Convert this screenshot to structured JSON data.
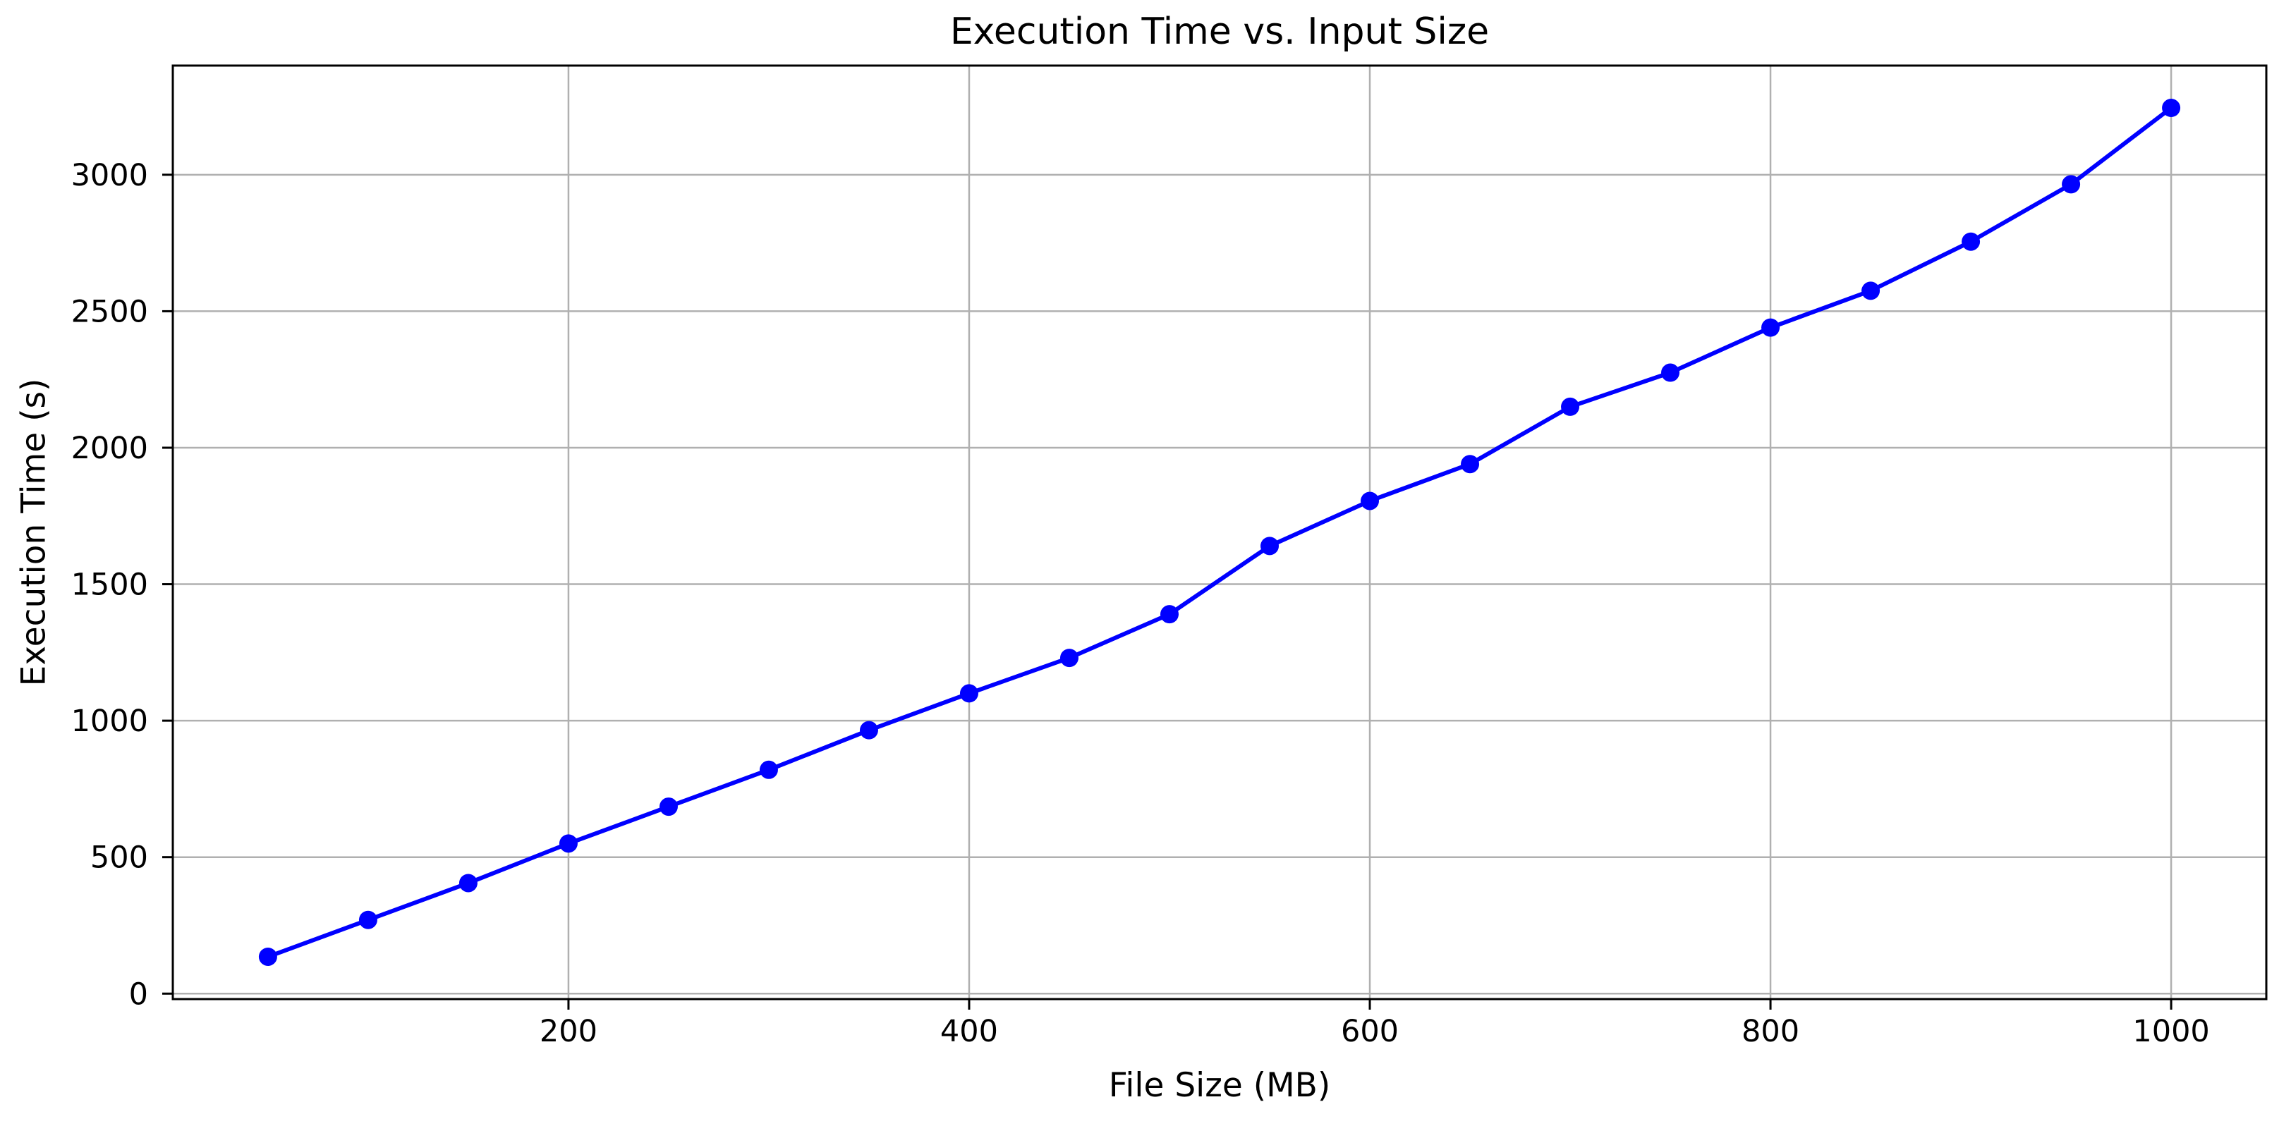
{
  "chart_data": {
    "type": "line",
    "title": "Execution Time vs. Input Size",
    "xlabel": "File Size (MB)",
    "ylabel": "Execution Time (s)",
    "x": [
      50,
      100,
      150,
      200,
      250,
      300,
      350,
      400,
      450,
      500,
      550,
      600,
      650,
      700,
      750,
      800,
      850,
      900,
      950,
      1000
    ],
    "y": [
      135,
      270,
      405,
      550,
      685,
      820,
      965,
      1100,
      1230,
      1390,
      1640,
      1805,
      1940,
      2150,
      2275,
      2440,
      2575,
      2755,
      2965,
      3245
    ],
    "xticks": [
      200,
      400,
      600,
      800,
      1000
    ],
    "yticks": [
      0,
      500,
      1000,
      1500,
      2000,
      2500,
      3000
    ],
    "xlim": [
      2.5,
      1047.5
    ],
    "ylim": [
      -20,
      3400
    ],
    "grid": true,
    "legend": null,
    "line_color": "#0000ff",
    "marker": "circle",
    "marker_color": "#0000ff",
    "grid_color": "#b0b0b0",
    "spine_color": "#000000",
    "text_color": "#000000",
    "background_color": "#ffffff"
  }
}
